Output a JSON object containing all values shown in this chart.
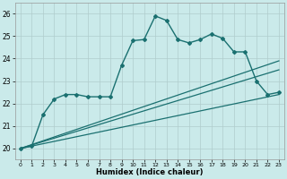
{
  "title": "",
  "xlabel": "Humidex (Indice chaleur)",
  "background_color": "#caeaea",
  "grid_color": "#b0cccc",
  "line_color": "#1a7070",
  "xlim": [
    -0.5,
    23.5
  ],
  "ylim": [
    19.5,
    26.5
  ],
  "xticks": [
    0,
    1,
    2,
    3,
    4,
    5,
    6,
    7,
    8,
    9,
    10,
    11,
    12,
    13,
    14,
    15,
    16,
    17,
    18,
    19,
    20,
    21,
    22,
    23
  ],
  "yticks": [
    20,
    21,
    22,
    23,
    24,
    25,
    26
  ],
  "series": [
    {
      "x": [
        0,
        1,
        2,
        3,
        4,
        5,
        6,
        7,
        8,
        9,
        10,
        11,
        12,
        13,
        14,
        15,
        16,
        17,
        18,
        19,
        20,
        21,
        22,
        23
      ],
      "y": [
        20.0,
        20.1,
        21.5,
        22.2,
        22.4,
        22.4,
        22.3,
        22.3,
        22.3,
        23.7,
        24.8,
        24.85,
        25.9,
        25.7,
        24.85,
        24.7,
        24.85,
        25.1,
        24.9,
        24.3,
        24.3,
        23.0,
        22.4,
        22.5
      ],
      "marker": "D",
      "markersize": 2.0,
      "linewidth": 1.0
    },
    {
      "x": [
        0,
        23
      ],
      "y": [
        20.0,
        23.9
      ],
      "marker": null,
      "markersize": 0,
      "linewidth": 0.9
    },
    {
      "x": [
        0,
        23
      ],
      "y": [
        20.0,
        23.5
      ],
      "marker": null,
      "markersize": 0,
      "linewidth": 0.9
    },
    {
      "x": [
        0,
        23
      ],
      "y": [
        20.0,
        22.4
      ],
      "marker": null,
      "markersize": 0,
      "linewidth": 0.9
    }
  ]
}
